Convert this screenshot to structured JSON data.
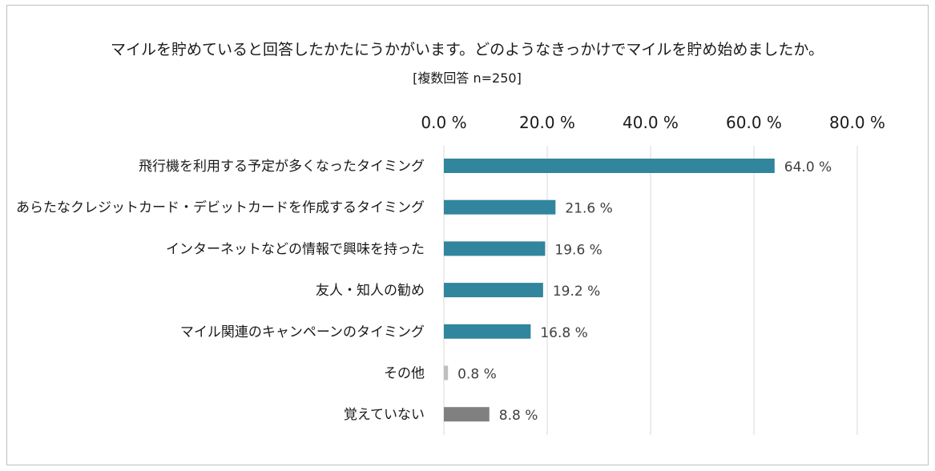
{
  "chart_data": {
    "type": "bar",
    "orientation": "horizontal",
    "title": "マイルを貯めていると回答したかたにうかがいます。どのようなきっかけでマイルを貯め始めましたか。",
    "subtitle": "[複数回答 n=250]",
    "xlim": [
      0,
      80
    ],
    "xticks": [
      0,
      20,
      40,
      60,
      80
    ],
    "xtick_labels": [
      "0.0 %",
      "20.0 %",
      "40.0 %",
      "60.0 %",
      "80.0 %"
    ],
    "axis_position": "top",
    "grid": true,
    "categories": [
      "飛行機を利用する予定が多くなったタイミング",
      "あらたなクレジットカード・デビットカードを作成するタイミング",
      "インターネットなどの情報で興味を持った",
      "友人・知人の勧め",
      "マイル関連のキャンペーンのタイミング",
      "その他",
      "覚えていない"
    ],
    "values": [
      64.0,
      21.6,
      19.6,
      19.2,
      16.8,
      0.8,
      8.8
    ],
    "value_labels": [
      "64.0 %",
      "21.6 %",
      "19.6 %",
      "19.2 %",
      "16.8 %",
      "0.8 %",
      "8.8 %"
    ],
    "colors": [
      "#31859c",
      "#31859c",
      "#31859c",
      "#31859c",
      "#31859c",
      "#bfbfbf",
      "#808080"
    ]
  }
}
